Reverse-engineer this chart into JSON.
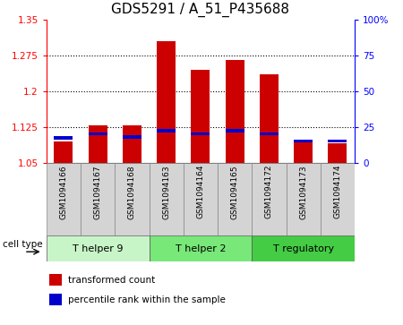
{
  "title": "GDS5291 / A_51_P435688",
  "samples": [
    "GSM1094166",
    "GSM1094167",
    "GSM1094168",
    "GSM1094163",
    "GSM1094164",
    "GSM1094165",
    "GSM1094172",
    "GSM1094173",
    "GSM1094174"
  ],
  "transformed_counts": [
    1.095,
    1.128,
    1.128,
    1.305,
    1.245,
    1.265,
    1.235,
    1.095,
    1.09
  ],
  "percentile_ranks": [
    17,
    20,
    18,
    22,
    20,
    22,
    20,
    15,
    15
  ],
  "cell_types": [
    {
      "label": "T helper 9",
      "span": [
        0,
        2
      ],
      "color": "#c8f5c8"
    },
    {
      "label": "T helper 2",
      "span": [
        3,
        5
      ],
      "color": "#78e878"
    },
    {
      "label": "T regulatory",
      "span": [
        6,
        8
      ],
      "color": "#44cc44"
    }
  ],
  "ylim_left": [
    1.05,
    1.35
  ],
  "ylim_right": [
    0,
    100
  ],
  "yticks_left": [
    1.05,
    1.125,
    1.2,
    1.275,
    1.35
  ],
  "yticks_right": [
    0,
    25,
    50,
    75,
    100
  ],
  "bar_color": "#cc0000",
  "percentile_color": "#0000cc",
  "bar_width": 0.55,
  "cell_type_label": "cell type",
  "legend_items": [
    "transformed count",
    "percentile rank within the sample"
  ],
  "title_fontsize": 11,
  "tick_fontsize": 7.5,
  "sample_fontsize": 6.5,
  "ct_fontsize": 8,
  "legend_fontsize": 7.5
}
